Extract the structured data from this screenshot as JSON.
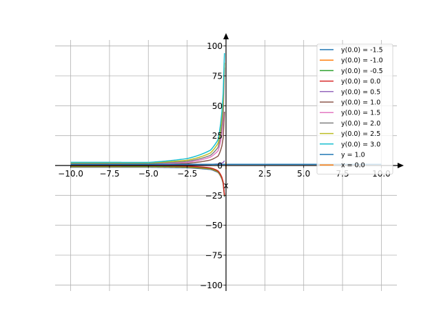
{
  "chart_data": {
    "type": "line",
    "title": "",
    "xlabel": "x",
    "ylabel": "",
    "xlim": [
      -11.0,
      11.0
    ],
    "ylim": [
      -105,
      105
    ],
    "grid": true,
    "legend_position": "top-right",
    "x_ticks": [
      -10.0,
      -7.5,
      -5.0,
      -2.5,
      0.0,
      2.5,
      5.0,
      7.5,
      10.0
    ],
    "x_tick_labels": [
      "−10.0",
      "−7.5",
      "−5.0",
      "−2.5",
      "0.0",
      "2.5",
      "5.0",
      "7.5",
      "10.0"
    ],
    "y_ticks": [
      -100,
      -75,
      -50,
      -25,
      0,
      25,
      50,
      75,
      100
    ],
    "y_tick_labels": [
      "−100",
      "−75",
      "−50",
      "−25",
      "0",
      "25",
      "50",
      "75",
      "100"
    ],
    "series": [
      {
        "name": "y(0.0) = -1.5",
        "color": "#1f77b4",
        "kind": "solution",
        "x_range": [
          -10.0,
          -0.1
        ],
        "values_at": {
          "x": [
            -10.0,
            -5.0,
            -2.5,
            -1.0,
            -0.5,
            -0.2,
            -0.1
          ],
          "y": [
            -1.48,
            -1.46,
            -1.92,
            -3.35,
            -5.92,
            -13.6,
            -26.3
          ]
        }
      },
      {
        "name": "y(0.0) = -1.0",
        "color": "#ff7f0e",
        "kind": "solution",
        "x_range": [
          -10.0,
          -0.1
        ],
        "values_at": {
          "x": [
            -10.0,
            -5.0,
            -2.5,
            -1.0,
            -0.5,
            -0.2,
            -0.1
          ],
          "y": [
            -1.0,
            -1.0,
            -1.45,
            -2.9,
            -5.5,
            -13.2,
            -25.8
          ]
        }
      },
      {
        "name": "y(0.0) = -0.5",
        "color": "#2ca02c",
        "kind": "solution",
        "x_range": [
          -10.0,
          -0.1
        ],
        "values_at": {
          "x": [
            -10.0,
            -5.0,
            -2.5,
            -1.0,
            -0.5,
            -0.2,
            -0.1
          ],
          "y": [
            -0.52,
            -0.55,
            -1.0,
            -2.45,
            -5.0,
            -12.7,
            -25.4
          ]
        }
      },
      {
        "name": "y(0.0) = 0.0",
        "color": "#d62728",
        "kind": "solution",
        "x_range": [
          -10.0,
          -0.1
        ],
        "values_at": {
          "x": [
            -10.0,
            -5.0,
            -2.5,
            -1.0,
            -0.5,
            -0.2,
            -0.1
          ],
          "y": [
            -0.05,
            -0.1,
            -0.55,
            -2.0,
            -4.6,
            -12.2,
            -24.9
          ]
        }
      },
      {
        "name": "y(0.0) = 0.5",
        "color": "#9467bd",
        "kind": "solution",
        "x_range": [
          -10.0,
          -0.1
        ],
        "values_at": {
          "x": [
            -10.0,
            -5.0,
            -2.5,
            -1.0,
            -0.5,
            -0.2,
            -0.1
          ],
          "y": [
            0.4,
            0.35,
            0.5,
            0.9,
            1.3,
            2.3,
            4.0
          ]
        }
      },
      {
        "name": "y(0.0) = 1.0",
        "color": "#8c564b",
        "kind": "solution",
        "x_range": [
          -10.0,
          -0.1
        ],
        "values_at": {
          "x": [
            -10.0,
            -5.0,
            -2.5,
            -1.0,
            -0.5,
            -0.2,
            -0.1
          ],
          "y": [
            0.88,
            0.8,
            1.8,
            4.6,
            8.0,
            20.0,
            45.0
          ]
        }
      },
      {
        "name": "y(0.0) = 1.5",
        "color": "#e377c2",
        "kind": "solution",
        "x_range": [
          -10.0,
          -0.1
        ],
        "values_at": {
          "x": [
            -10.0,
            -5.0,
            -2.5,
            -1.0,
            -0.5,
            -0.2,
            -0.1
          ],
          "y": [
            1.33,
            1.25,
            2.7,
            7.0,
            12.5,
            33.0,
            80.0
          ]
        }
      },
      {
        "name": "y(0.0) = 2.0",
        "color": "#7f7f7f",
        "kind": "solution",
        "x_range": [
          -10.0,
          -0.1
        ],
        "values_at": {
          "x": [
            -10.0,
            -5.0,
            -2.5,
            -1.0,
            -0.5,
            -0.2,
            -0.1
          ],
          "y": [
            1.8,
            1.7,
            3.5,
            8.5,
            15.5,
            40.0,
            82.0
          ]
        }
      },
      {
        "name": "y(0.0) = 2.5",
        "color": "#bcbd22",
        "kind": "solution",
        "x_range": [
          -10.0,
          -0.1
        ],
        "values_at": {
          "x": [
            -10.0,
            -5.0,
            -2.5,
            -1.0,
            -0.5,
            -0.2,
            -0.1
          ],
          "y": [
            2.25,
            2.2,
            4.4,
            10.5,
            19.0,
            48.0,
            86.0
          ]
        }
      },
      {
        "name": "y(0.0) = 3.0",
        "color": "#17becf",
        "kind": "solution",
        "x_range": [
          -10.0,
          -0.1
        ],
        "values_at": {
          "x": [
            -10.0,
            -5.0,
            -2.5,
            -1.0,
            -0.5,
            -0.2,
            -0.1
          ],
          "y": [
            2.7,
            2.6,
            5.8,
            12.8,
            22.0,
            55.0,
            94.0
          ]
        }
      },
      {
        "name": "y = 1.0",
        "color": "#1f77b4",
        "kind": "horizontal",
        "y": 1.0
      },
      {
        "name": "x = 0.0",
        "color": "#ff7f0e",
        "kind": "vertical",
        "x": 0.0
      }
    ]
  }
}
